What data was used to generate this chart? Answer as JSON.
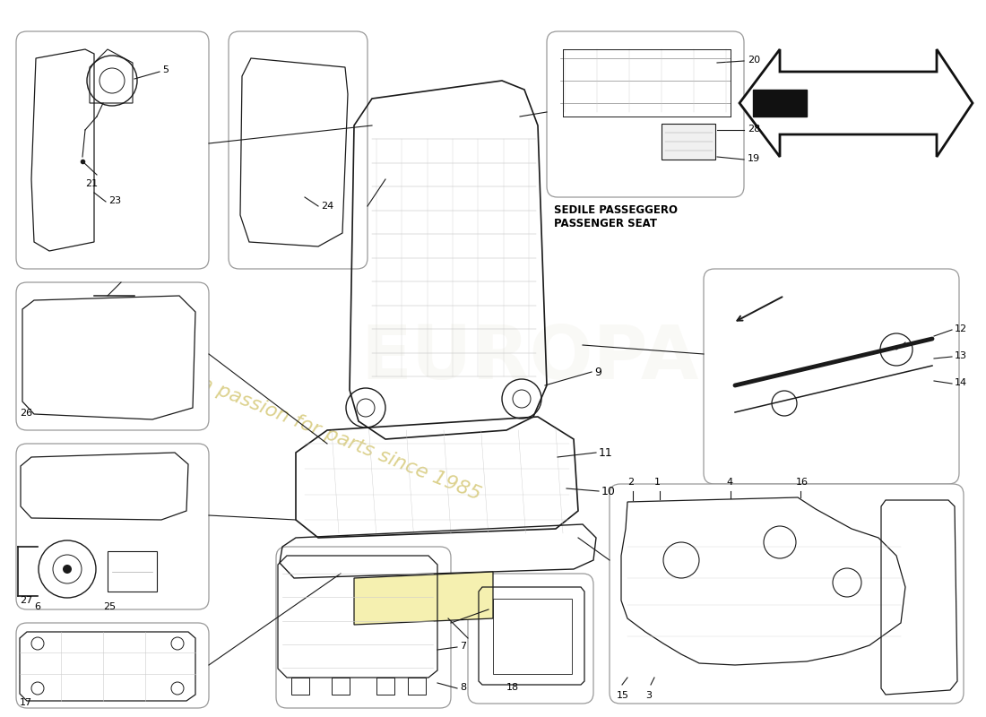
{
  "bg": "#ffffff",
  "box_ec": "#999999",
  "lc": "#1a1a1a",
  "gray": "#aaaaaa",
  "wm_text": "a passion for parts since 1985",
  "wm_color": "#d8cc80",
  "passenger_label": "SEDILE PASSEGGERO\nPASSENGER SEAT",
  "figsize": [
    11.0,
    8.0
  ],
  "dpi": 100
}
